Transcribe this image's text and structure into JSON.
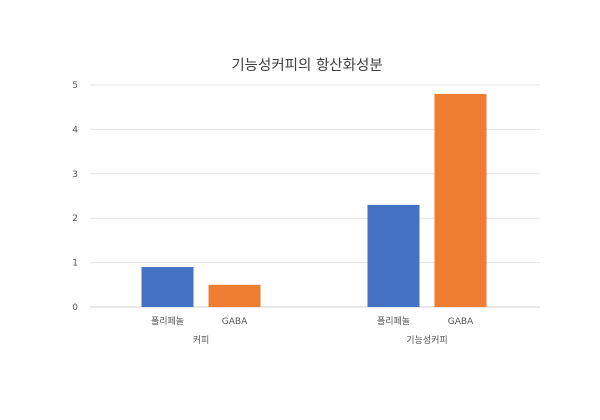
{
  "chart_data": {
    "type": "bar",
    "title": "기능성커피의 항산화성분",
    "xlabel": "",
    "ylabel": "",
    "ylim": [
      0,
      5
    ],
    "yticks": [
      0,
      1,
      2,
      3,
      4,
      5
    ],
    "grid": true,
    "legend": "none",
    "groups": [
      {
        "label": "커피",
        "bars": [
          {
            "label": "폴리페놀",
            "value": 0.9,
            "color": "#4472C4"
          },
          {
            "label": "GABA",
            "value": 0.5,
            "color": "#ED7D31"
          }
        ]
      },
      {
        "label": "기능성커피",
        "bars": [
          {
            "label": "폴리페놀",
            "value": 2.3,
            "color": "#4472C4"
          },
          {
            "label": "GABA",
            "value": 4.8,
            "color": "#ED7D31"
          }
        ]
      }
    ]
  }
}
